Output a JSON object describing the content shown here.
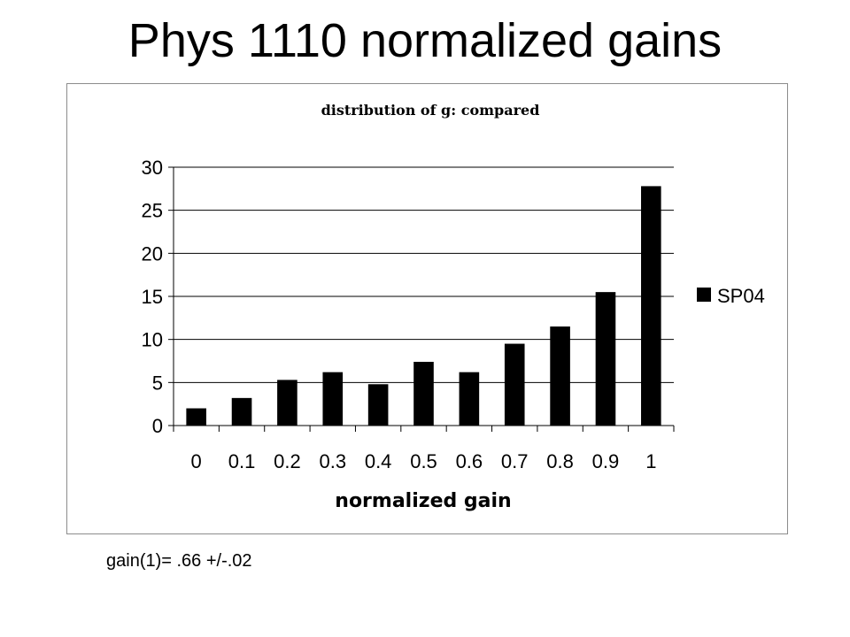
{
  "slide": {
    "title": "Phys 1110 normalized gains",
    "footnote": "gain(1)= .66 +/-.02"
  },
  "chart_data": {
    "type": "bar",
    "title": "distribution of g: compared",
    "xlabel": "normalized gain",
    "ylabel": "",
    "categories": [
      "0",
      "0.1",
      "0.2",
      "0.3",
      "0.4",
      "0.5",
      "0.6",
      "0.7",
      "0.8",
      "0.9",
      "1"
    ],
    "series": [
      {
        "name": "SP04",
        "color": "#000000",
        "values": [
          2,
          3.2,
          5.3,
          6.2,
          4.8,
          7.4,
          6.2,
          9.5,
          11.5,
          15.5,
          27.8
        ]
      }
    ],
    "ylim": [
      0,
      30
    ],
    "yticks": [
      0,
      5,
      10,
      15,
      20,
      25,
      30
    ],
    "grid": true,
    "legend": "right"
  }
}
